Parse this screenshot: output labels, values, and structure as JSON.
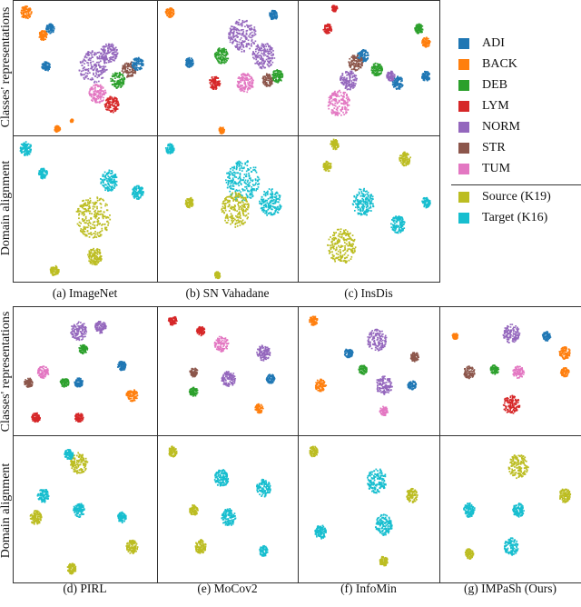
{
  "legend": {
    "items": [
      {
        "label": "ADI",
        "color": "#1f77b4"
      },
      {
        "label": "BACK",
        "color": "#ff7f0e"
      },
      {
        "label": "DEB",
        "color": "#2ca02c"
      },
      {
        "label": "LYM",
        "color": "#d62728"
      },
      {
        "label": "NORM",
        "color": "#9467bd"
      },
      {
        "label": "STR",
        "color": "#8c564b"
      },
      {
        "label": "TUM",
        "color": "#e377c2"
      },
      {
        "label": "Source (K19)",
        "color": "#bcbd22"
      },
      {
        "label": "Target (K16)",
        "color": "#17becf"
      }
    ]
  },
  "row_labels": {
    "classes": "Classes' representations",
    "domain": "Domain alignment"
  },
  "chart_data": [
    {
      "type": "scatter",
      "caption": "(a) ImageNet",
      "classes": [
        [
          "BACK",
          8,
          8,
          4
        ],
        [
          "BACK",
          20,
          25,
          3
        ],
        [
          "ADI",
          25,
          20,
          3
        ],
        [
          "ADI",
          22,
          48,
          3
        ],
        [
          "NORM",
          55,
          48,
          10
        ],
        [
          "NORM",
          66,
          38,
          6
        ],
        [
          "DEB",
          72,
          58,
          5
        ],
        [
          "LYM",
          68,
          76,
          5
        ],
        [
          "TUM",
          58,
          68,
          6
        ],
        [
          "STR",
          80,
          50,
          5
        ],
        [
          "ADI",
          86,
          46,
          4
        ],
        [
          "BACK",
          30,
          94,
          2
        ],
        [
          "BACK",
          40,
          88,
          1
        ]
      ],
      "domain": [
        [
          "Target (K16)",
          8,
          8,
          4
        ],
        [
          "Target (K16)",
          20,
          25,
          3
        ],
        [
          "Target (K16)",
          66,
          30,
          6
        ],
        [
          "Target (K16)",
          86,
          38,
          4
        ],
        [
          "Source (K19)",
          55,
          55,
          12
        ],
        [
          "Source (K19)",
          56,
          82,
          5
        ],
        [
          "Source (K19)",
          28,
          92,
          3
        ]
      ]
    },
    {
      "type": "scatter",
      "caption": "(b) SN Vahadane",
      "classes": [
        [
          "BACK",
          8,
          8,
          3
        ],
        [
          "NORM",
          60,
          25,
          10
        ],
        [
          "NORM",
          75,
          40,
          8
        ],
        [
          "DEB",
          45,
          40,
          5
        ],
        [
          "ADI",
          22,
          45,
          3
        ],
        [
          "ADI",
          82,
          10,
          3
        ],
        [
          "TUM",
          62,
          60,
          6
        ],
        [
          "LYM",
          40,
          60,
          4
        ],
        [
          "STR",
          78,
          58,
          4
        ],
        [
          "DEB",
          85,
          55,
          4
        ],
        [
          "BACK",
          45,
          95,
          2
        ]
      ],
      "domain": [
        [
          "Target (K16)",
          8,
          8,
          3
        ],
        [
          "Target (K16)",
          60,
          30,
          12
        ],
        [
          "Source (K19)",
          55,
          50,
          10
        ],
        [
          "Target (K16)",
          80,
          45,
          8
        ],
        [
          "Source (K19)",
          22,
          45,
          3
        ],
        [
          "Source (K19)",
          42,
          95,
          2
        ]
      ]
    },
    {
      "type": "scatter",
      "caption": "(c) InsDis",
      "classes": [
        [
          "LYM",
          20,
          20,
          3
        ],
        [
          "LYM",
          25,
          5,
          2
        ],
        [
          "ADI",
          45,
          40,
          4
        ],
        [
          "STR",
          40,
          45,
          5
        ],
        [
          "NORM",
          35,
          58,
          6
        ],
        [
          "TUM",
          28,
          75,
          8
        ],
        [
          "DEB",
          55,
          50,
          4
        ],
        [
          "ADI",
          70,
          60,
          4
        ],
        [
          "NORM",
          65,
          55,
          3
        ],
        [
          "DEB",
          85,
          20,
          3
        ],
        [
          "BACK",
          90,
          30,
          3
        ],
        [
          "ADI",
          90,
          55,
          3
        ]
      ],
      "domain": [
        [
          "Source (K19)",
          20,
          20,
          3
        ],
        [
          "Source (K19)",
          25,
          5,
          3
        ],
        [
          "Target (K16)",
          45,
          45,
          8
        ],
        [
          "Target (K16)",
          70,
          60,
          5
        ],
        [
          "Source (K19)",
          30,
          75,
          10
        ],
        [
          "Source (K19)",
          75,
          15,
          4
        ],
        [
          "Target (K16)",
          90,
          45,
          3
        ]
      ]
    },
    {
      "type": "scatter",
      "caption": "(d) PIRL",
      "classes": [
        [
          "NORM",
          45,
          18,
          6
        ],
        [
          "NORM",
          60,
          15,
          4
        ],
        [
          "DEB",
          48,
          32,
          3
        ],
        [
          "TUM",
          20,
          50,
          4
        ],
        [
          "STR",
          10,
          58,
          3
        ],
        [
          "DEB",
          35,
          58,
          3
        ],
        [
          "ADI",
          45,
          58,
          3
        ],
        [
          "LYM",
          15,
          85,
          3
        ],
        [
          "LYM",
          45,
          85,
          3
        ],
        [
          "ADI",
          75,
          45,
          3
        ],
        [
          "BACK",
          82,
          68,
          4
        ]
      ],
      "domain": [
        [
          "Source (K19)",
          45,
          18,
          6
        ],
        [
          "Target (K16)",
          38,
          12,
          3
        ],
        [
          "Target (K16)",
          20,
          40,
          4
        ],
        [
          "Source (K19)",
          15,
          55,
          4
        ],
        [
          "Target (K16)",
          45,
          50,
          4
        ],
        [
          "Target (K16)",
          75,
          55,
          3
        ],
        [
          "Source (K19)",
          82,
          75,
          4
        ],
        [
          "Source (K19)",
          40,
          90,
          3
        ]
      ]
    },
    {
      "type": "scatter",
      "caption": "(e) MoCov2",
      "classes": [
        [
          "LYM",
          10,
          10,
          3
        ],
        [
          "LYM",
          30,
          18,
          3
        ],
        [
          "TUM",
          45,
          28,
          5
        ],
        [
          "NORM",
          75,
          35,
          5
        ],
        [
          "STR",
          25,
          50,
          3
        ],
        [
          "NORM",
          50,
          55,
          5
        ],
        [
          "ADI",
          80,
          55,
          3
        ],
        [
          "BACK",
          72,
          78,
          3
        ],
        [
          "DEB",
          25,
          65,
          3
        ]
      ],
      "domain": [
        [
          "Source (K19)",
          10,
          10,
          3
        ],
        [
          "Target (K16)",
          45,
          28,
          5
        ],
        [
          "Target (K16)",
          75,
          35,
          5
        ],
        [
          "Source (K19)",
          25,
          50,
          3
        ],
        [
          "Target (K16)",
          50,
          55,
          5
        ],
        [
          "Target (K16)",
          75,
          78,
          3
        ],
        [
          "Source (K19)",
          30,
          75,
          4
        ]
      ]
    },
    {
      "type": "scatter",
      "caption": "(f) InfoMin",
      "classes": [
        [
          "BACK",
          10,
          10,
          3
        ],
        [
          "NORM",
          55,
          25,
          7
        ],
        [
          "ADI",
          35,
          35,
          3
        ],
        [
          "STR",
          82,
          38,
          3
        ],
        [
          "DEB",
          45,
          48,
          3
        ],
        [
          "BACK",
          15,
          60,
          4
        ],
        [
          "NORM",
          60,
          60,
          6
        ],
        [
          "ADI",
          80,
          60,
          3
        ],
        [
          "TUM",
          60,
          80,
          3
        ]
      ],
      "domain": [
        [
          "Source (K19)",
          10,
          10,
          3
        ],
        [
          "Target (K16)",
          55,
          30,
          7
        ],
        [
          "Source (K19)",
          80,
          40,
          4
        ],
        [
          "Target (K16)",
          15,
          65,
          4
        ],
        [
          "Target (K16)",
          60,
          60,
          6
        ],
        [
          "Source (K19)",
          60,
          85,
          3
        ]
      ]
    },
    {
      "type": "scatter",
      "caption": "(g) IMPaSh (Ours)",
      "classes": [
        [
          "NORM",
          50,
          20,
          6
        ],
        [
          "ADI",
          75,
          22,
          3
        ],
        [
          "BACK",
          10,
          22,
          2
        ],
        [
          "BACK",
          88,
          35,
          4
        ],
        [
          "STR",
          20,
          50,
          4
        ],
        [
          "DEB",
          38,
          48,
          3
        ],
        [
          "TUM",
          55,
          50,
          4
        ],
        [
          "BACK",
          88,
          50,
          3
        ],
        [
          "LYM",
          50,
          75,
          6
        ]
      ],
      "domain": [
        [
          "Source (K19)",
          55,
          20,
          7
        ],
        [
          "Target (K16)",
          20,
          50,
          4
        ],
        [
          "Target (K16)",
          55,
          50,
          4
        ],
        [
          "Source (K19)",
          88,
          40,
          4
        ],
        [
          "Target (K16)",
          50,
          75,
          5
        ],
        [
          "Source (K19)",
          20,
          80,
          3
        ]
      ]
    }
  ]
}
